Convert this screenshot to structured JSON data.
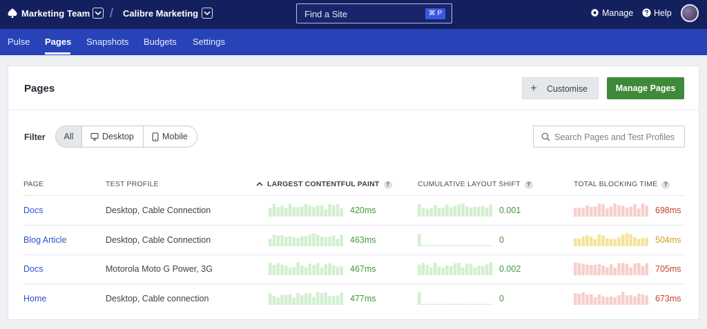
{
  "topbar": {
    "team": "Marketing Team",
    "separator": "/",
    "site": "Calibre Marketing",
    "search_placeholder": "Find a Site",
    "shortcut": "⌘ P",
    "manage": "Manage",
    "help": "Help"
  },
  "subnav": {
    "tabs": [
      "Pulse",
      "Pages",
      "Snapshots",
      "Budgets",
      "Settings"
    ],
    "active": "Pages"
  },
  "card": {
    "title": "Pages",
    "customise_label": "Customise",
    "manage_pages_label": "Manage Pages",
    "filter_label": "Filter",
    "filters": [
      "All",
      "Desktop",
      "Mobile"
    ],
    "active_filter": "All",
    "search_placeholder": "Search Pages and Test Profiles"
  },
  "table": {
    "columns": [
      "PAGE",
      "TEST PROFILE",
      "LARGEST CONTENTFUL PAINT",
      "CUMULATIVE LAYOUT SHIFT",
      "TOTAL BLOCKING TIME"
    ],
    "help_glyph": "?",
    "sorted_column": "LARGEST CONTENTFUL PAINT",
    "rows": [
      {
        "page": "Docs",
        "profile": "Desktop, Cable Connection",
        "lcp": "420ms",
        "cls": "0.001",
        "tbt": "698ms",
        "lcp_status": "good",
        "cls_status": "good",
        "tbt_status": "poor"
      },
      {
        "page": "Blog Article",
        "profile": "Desktop, Cable Connection",
        "lcp": "463ms",
        "cls": "0",
        "tbt": "504ms",
        "lcp_status": "good",
        "cls_status": "good",
        "tbt_status": "needs-improvement"
      },
      {
        "page": "Docs",
        "profile": "Motorola Moto G Power, 3G",
        "lcp": "467ms",
        "cls": "0.002",
        "tbt": "705ms",
        "lcp_status": "good",
        "cls_status": "good",
        "tbt_status": "poor"
      },
      {
        "page": "Home",
        "profile": "Desktop, Cable connection",
        "lcp": "477ms",
        "cls": "0",
        "tbt": "673ms",
        "lcp_status": "good",
        "cls_status": "good",
        "tbt_status": "poor"
      }
    ]
  },
  "colors": {
    "topbar": "#14205e",
    "subnav": "#2843b8",
    "good": "#3f9a3a",
    "good_bar": "#d3efd0",
    "needs_improvement": "#d49a1e",
    "needs_improvement_bar": "#f6e49a",
    "poor": "#c0412f",
    "poor_bar": "#f6cfcb",
    "primary_button": "#3f8a3a",
    "link": "#2f4fd0"
  },
  "icons": {
    "logo": "spade-icon",
    "chevron": "chevron-down-icon",
    "manage": "gear-icon",
    "help": "help-circle-icon",
    "customise": "plus-icon",
    "desktop": "monitor-icon",
    "mobile": "phone-icon",
    "search": "search-icon",
    "sort": "chevron-up-icon"
  }
}
